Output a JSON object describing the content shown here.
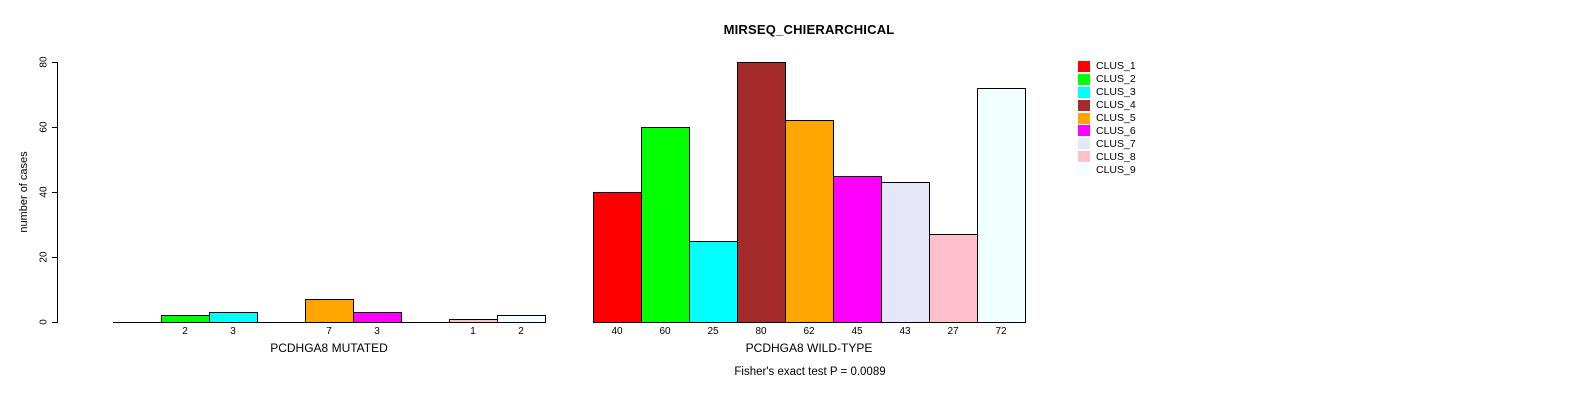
{
  "title": "MIRSEQ_CHIERARCHICAL",
  "chart_data": {
    "type": "bar",
    "title": "MIRSEQ_CHIERARCHICAL",
    "ylabel": "number of cases",
    "xlabel": "",
    "ylim": [
      0,
      80
    ],
    "yticks": [
      0,
      20,
      40,
      60,
      80
    ],
    "grid": false,
    "legend_position": "right",
    "categories": [
      "PCDHGA8 MUTATED",
      "PCDHGA8 WILD-TYPE"
    ],
    "series": [
      {
        "name": "CLUS_1",
        "color": "#FF0000",
        "values": [
          0,
          40
        ]
      },
      {
        "name": "CLUS_2",
        "color": "#00FF00",
        "values": [
          2,
          60
        ]
      },
      {
        "name": "CLUS_3",
        "color": "#00FFFF",
        "values": [
          3,
          25
        ]
      },
      {
        "name": "CLUS_4",
        "color": "#A52A2A",
        "values": [
          0,
          80
        ]
      },
      {
        "name": "CLUS_5",
        "color": "#FFA500",
        "values": [
          7,
          62
        ]
      },
      {
        "name": "CLUS_6",
        "color": "#FF00FF",
        "values": [
          3,
          45
        ]
      },
      {
        "name": "CLUS_7",
        "color": "#E6E6FA",
        "values": [
          0,
          43
        ]
      },
      {
        "name": "CLUS_8",
        "color": "#FFC0CB",
        "values": [
          1,
          27
        ]
      },
      {
        "name": "CLUS_9",
        "color": "#F0FFFF",
        "values": [
          2,
          72
        ]
      }
    ],
    "bar_value_labels": {
      "PCDHGA8 MUTATED": [
        null,
        2,
        3,
        null,
        7,
        3,
        null,
        1,
        2
      ],
      "PCDHGA8 WILD-TYPE": [
        40,
        60,
        25,
        80,
        62,
        45,
        43,
        27,
        72
      ]
    },
    "annotation": "Fisher's exact test P = 0.0089"
  }
}
